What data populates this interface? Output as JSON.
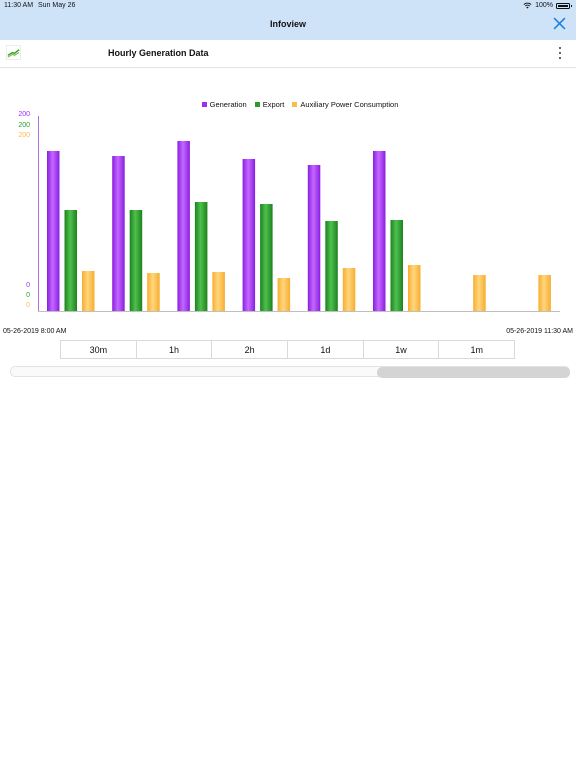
{
  "status_bar": {
    "time": "11:30 AM",
    "date": "Sun May 26",
    "battery": "100%"
  },
  "nav": {
    "title": "Infoview",
    "close_icon": "close-icon"
  },
  "header": {
    "title": "Hourly Generation Data",
    "logo_icon": "line-chart-icon",
    "menu_icon": "more-vertical-icon"
  },
  "colors": {
    "generation": "#9b2ef0",
    "export": "#2a9c2a",
    "auxiliary": "#fbbd4a",
    "nav_bg": "#cfe3f8",
    "accent": "#1a7fe0"
  },
  "chart_data": {
    "type": "bar",
    "legend": [
      "Generation",
      "Export",
      "Auxiliary Power Consumption"
    ],
    "legend_position": "top-center",
    "y_ticks": {
      "generation": {
        "top": "200",
        "bottom": "0"
      },
      "export": {
        "top": "200",
        "bottom": "0"
      },
      "auxiliary": {
        "top": "200",
        "bottom": "0"
      }
    },
    "ylim": [
      0,
      200
    ],
    "x_start_label": "05-26-2019 8:00 AM",
    "x_end_label": "05-26-2019 11:30 AM",
    "series": [
      {
        "name": "Generation",
        "values": [
          160,
          155,
          170,
          152,
          146,
          160,
          0,
          0
        ]
      },
      {
        "name": "Export",
        "values": [
          101,
          101,
          109,
          107,
          90,
          91,
          0,
          0
        ]
      },
      {
        "name": "Auxiliary Power Consumption",
        "values": [
          40,
          38,
          39,
          33,
          43,
          46,
          36,
          36
        ]
      }
    ]
  },
  "ranges": [
    "30m",
    "1h",
    "2h",
    "1d",
    "1w",
    "1m"
  ]
}
